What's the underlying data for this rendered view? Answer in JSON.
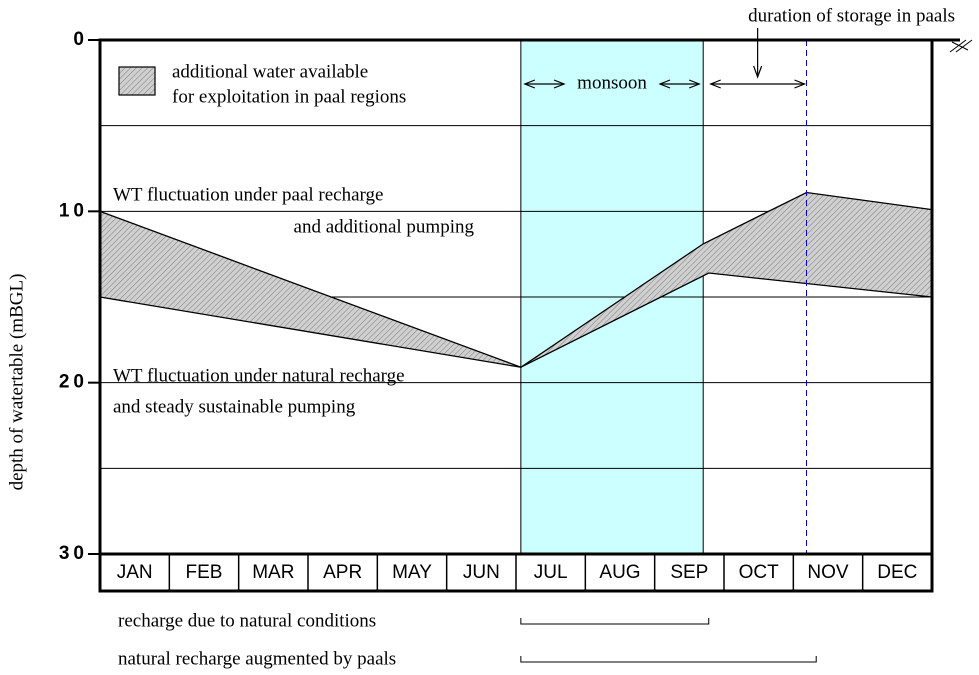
{
  "chart_data": {
    "type": "line",
    "y_label": "depth of watertable (mBGL)",
    "ylim": [
      0,
      30
    ],
    "yticks": [
      0,
      10,
      20,
      30
    ],
    "grid_lines": [
      5,
      10,
      15,
      20,
      25
    ],
    "y_inverted": true,
    "xlim": [
      0,
      12
    ],
    "categories": [
      "JAN",
      "FEB",
      "MAR",
      "APR",
      "MAY",
      "JUN",
      "JUL",
      "AUG",
      "SEP",
      "OCT",
      "NOV",
      "DEC"
    ],
    "series": [
      {
        "name": [
          "WT fluctuation under paal recharge",
          "and additional pumping"
        ],
        "color": "#000000",
        "x": [
          0,
          6.07,
          8.7,
          10.19,
          12
        ],
        "values": [
          10,
          19.1,
          11.9,
          8.9,
          9.9
        ]
      },
      {
        "name": [
          "WT fluctuation under natural recharge",
          "and steady sustainable pumping"
        ],
        "color": "#000000",
        "x": [
          0,
          6.07,
          8.78,
          12
        ],
        "values": [
          15,
          19.1,
          13.6,
          15
        ]
      }
    ],
    "legend": {
      "label": [
        "additional water available",
        "for exploitation in paal regions"
      ]
    },
    "monsoon": {
      "label": "monsoon",
      "range": [
        6.07,
        8.7
      ],
      "color": "#ccffff"
    },
    "storage": {
      "label": "duration of storage in paals",
      "range": [
        8.78,
        10.19
      ],
      "color": "#0000cc"
    },
    "brackets": [
      {
        "label": "recharge due to natural conditions",
        "range": [
          6.07,
          8.78
        ]
      },
      {
        "label": "natural recharge augmented by paals",
        "range": [
          6.07,
          10.33
        ]
      }
    ]
  }
}
